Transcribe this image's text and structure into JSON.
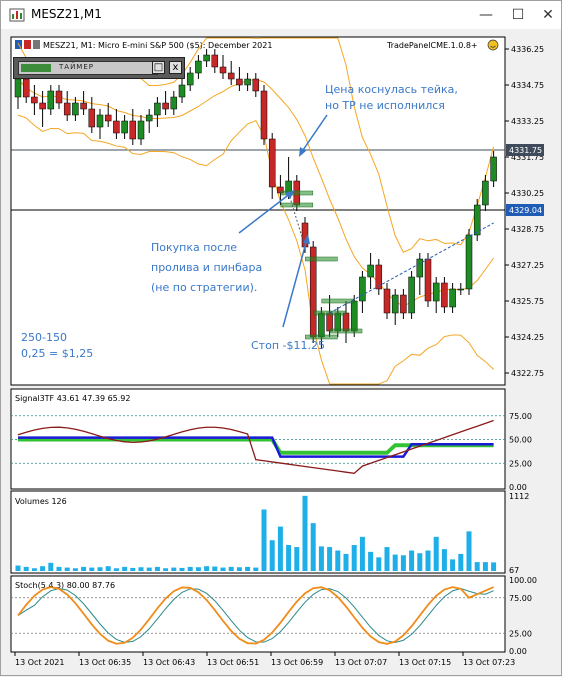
{
  "window": {
    "title": "MESZ21,M1",
    "minimize": "—",
    "maximize": "☐",
    "close": "✕"
  },
  "chart_header": {
    "info": "MESZ21, M1:  Micro E-mini S&P 500 ($5): December 2021",
    "panel_name": "TradePanelCME.1.0.8+"
  },
  "timer_panel": {
    "label": "ТАЙМЕР",
    "square_btn": "□",
    "close_btn": "x"
  },
  "annotations": {
    "tp_note_line1": "Цена коснулась тейка,",
    "tp_note_line2": "но TP не исполнился",
    "buy_note_line1": "Покупка после",
    "buy_note_line2": "пролива и пинбара",
    "buy_note_line3": "(не по стратегии).",
    "stop_note": "Стоп -$11.25",
    "ratio_line1": "250-150",
    "ratio_line2": "0,25 = $1,25"
  },
  "colors": {
    "bull": "#1f8b24",
    "bear": "#c62828",
    "bollinger": "#f5a623",
    "annotation": "#3a78c8",
    "price_marker": "#3f4b5b",
    "entry_marker": "#1f5cb5",
    "volume": "#1eaee8",
    "signal_red": "#8b1a1a",
    "signal_blue": "#1a1ad8",
    "signal_green": "#33c233",
    "stoch_orange": "#f08c1a",
    "stoch_teal": "#2a8a8a"
  },
  "price_markers": {
    "tp_label": "4331.75",
    "entry_label": "4329.04"
  },
  "chart_data": [
    {
      "type": "candlestick",
      "panel": "main",
      "y_ticks": [
        "4336.25",
        "4334.75",
        "4333.25",
        "4331.75",
        "4330.25",
        "4328.75",
        "4327.25",
        "4325.75",
        "4324.25",
        "4322.75"
      ],
      "ylim": [
        4322.25,
        4336.75
      ],
      "candles": [
        [
          4334.25,
          4335.25,
          4333.75,
          4335.0
        ],
        [
          4335.0,
          4335.5,
          4334.0,
          4334.25
        ],
        [
          4334.25,
          4334.75,
          4333.5,
          4334.0
        ],
        [
          4334.0,
          4334.5,
          4333.0,
          4333.75
        ],
        [
          4333.75,
          4334.75,
          4333.5,
          4334.5
        ],
        [
          4334.5,
          4334.75,
          4333.75,
          4334.0
        ],
        [
          4334.0,
          4334.5,
          4333.25,
          4333.5
        ],
        [
          4333.5,
          4334.25,
          4333.25,
          4334.0
        ],
        [
          4334.0,
          4334.5,
          4333.5,
          4333.75
        ],
        [
          4333.75,
          4334.25,
          4332.75,
          4333.0
        ],
        [
          4333.0,
          4333.75,
          4332.5,
          4333.5
        ],
        [
          4333.5,
          4334.0,
          4333.0,
          4333.25
        ],
        [
          4333.25,
          4333.75,
          4332.5,
          4332.75
        ],
        [
          4332.75,
          4333.5,
          4332.5,
          4333.25
        ],
        [
          4333.25,
          4333.75,
          4332.25,
          4332.5
        ],
        [
          4332.5,
          4333.5,
          4332.25,
          4333.25
        ],
        [
          4333.25,
          4333.75,
          4332.75,
          4333.5
        ],
        [
          4333.5,
          4334.25,
          4333.0,
          4334.0
        ],
        [
          4334.0,
          4334.5,
          4333.5,
          4333.75
        ],
        [
          4333.75,
          4334.5,
          4333.5,
          4334.25
        ],
        [
          4334.25,
          4335.0,
          4334.0,
          4334.75
        ],
        [
          4334.75,
          4335.5,
          4334.5,
          4335.25
        ],
        [
          4335.25,
          4336.0,
          4335.0,
          4335.75
        ],
        [
          4335.75,
          4336.25,
          4335.5,
          4336.0
        ],
        [
          4336.0,
          4336.25,
          4335.25,
          4335.5
        ],
        [
          4335.5,
          4336.0,
          4335.0,
          4335.25
        ],
        [
          4335.25,
          4335.75,
          4334.75,
          4335.0
        ],
        [
          4335.0,
          4335.5,
          4334.5,
          4334.75
        ],
        [
          4334.75,
          4335.25,
          4334.5,
          4335.0
        ],
        [
          4335.0,
          4335.25,
          4334.25,
          4334.5
        ],
        [
          4334.5,
          4334.75,
          4332.25,
          4332.5
        ],
        [
          4332.5,
          4332.75,
          4330.0,
          4330.5
        ],
        [
          4330.5,
          4331.0,
          4329.75,
          4330.25
        ],
        [
          4330.25,
          4331.75,
          4330.0,
          4330.75
        ],
        [
          4330.75,
          4331.0,
          4329.5,
          4329.75
        ],
        [
          4329.0,
          4329.25,
          4327.75,
          4328.0
        ],
        [
          4328.0,
          4328.25,
          4324.0,
          4324.25
        ],
        [
          4324.25,
          4325.5,
          4323.75,
          4325.25
        ],
        [
          4325.25,
          4326.0,
          4324.25,
          4324.5
        ],
        [
          4324.5,
          4325.5,
          4324.25,
          4325.25
        ],
        [
          4325.25,
          4325.75,
          4324.0,
          4324.5
        ],
        [
          4324.5,
          4326.0,
          4324.25,
          4325.75
        ],
        [
          4325.75,
          4327.0,
          4325.25,
          4326.75
        ],
        [
          4326.75,
          4327.75,
          4326.25,
          4327.25
        ],
        [
          4327.25,
          4327.5,
          4326.0,
          4326.25
        ],
        [
          4326.25,
          4326.5,
          4325.0,
          4325.25
        ],
        [
          4325.25,
          4326.25,
          4324.75,
          4326.0
        ],
        [
          4326.0,
          4326.25,
          4325.0,
          4325.25
        ],
        [
          4325.25,
          4327.0,
          4325.0,
          4326.75
        ],
        [
          4326.75,
          4327.75,
          4326.0,
          4327.5
        ],
        [
          4327.5,
          4327.75,
          4325.5,
          4325.75
        ],
        [
          4325.75,
          4326.75,
          4325.25,
          4326.5
        ],
        [
          4326.5,
          4326.75,
          4325.25,
          4325.5
        ],
        [
          4325.5,
          4326.5,
          4325.25,
          4326.25
        ],
        [
          4326.25,
          4326.5,
          4326.0,
          4326.25
        ],
        [
          4326.25,
          4328.75,
          4326.0,
          4328.5
        ],
        [
          4328.5,
          4330.0,
          4328.25,
          4329.75
        ],
        [
          4329.75,
          4331.0,
          4329.5,
          4330.75
        ],
        [
          4330.75,
          4332.0,
          4330.5,
          4331.75
        ]
      ]
    },
    {
      "type": "line",
      "panel": "Signal3TF",
      "title": "Signal3TF 43.61 47.39 65.92",
      "y_ticks": [
        "75.00",
        "50.00",
        "25.00",
        "0.00"
      ],
      "ylim": [
        0,
        100
      ]
    },
    {
      "type": "bar",
      "panel": "Volumes",
      "title": "Volumes 126",
      "y_ticks": [
        "1112",
        "67"
      ],
      "values": [
        80,
        60,
        40,
        70,
        120,
        60,
        50,
        40,
        60,
        50,
        55,
        70,
        40,
        60,
        45,
        55,
        50,
        60,
        40,
        50,
        45,
        60,
        55,
        70,
        65,
        50,
        60,
        55,
        60,
        50,
        900,
        450,
        650,
        380,
        350,
        1100,
        700,
        360,
        350,
        300,
        250,
        380,
        500,
        280,
        200,
        350,
        240,
        230,
        300,
        260,
        300,
        500,
        320,
        170,
        250,
        580,
        130,
        130,
        126
      ]
    },
    {
      "type": "line",
      "panel": "Stoch",
      "title": "Stoch(5,4,3) 80.00 87.76",
      "y_ticks": [
        "100.00",
        "75.00",
        "25.00",
        "0.00"
      ],
      "ylim": [
        0,
        100
      ]
    }
  ],
  "time_axis": {
    "labels": [
      "13 Oct 2021",
      "13 Oct 06:35",
      "13 Oct 06:43",
      "13 Oct 06:51",
      "13 Oct 06:59",
      "13 Oct 07:07",
      "13 Oct 07:15",
      "13 Oct 07:23"
    ]
  }
}
